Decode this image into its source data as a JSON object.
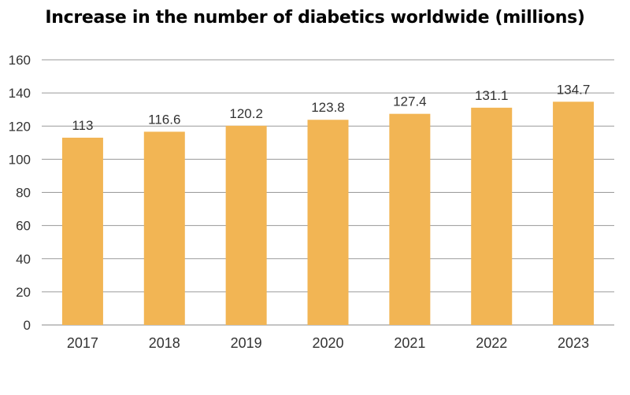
{
  "chart_data": {
    "type": "bar",
    "title": "Increase in the number of diabetics worldwide (millions)",
    "categories": [
      "2017",
      "2018",
      "2019",
      "2020",
      "2021",
      "2022",
      "2023"
    ],
    "values": [
      113,
      116.6,
      120.2,
      123.8,
      127.4,
      131.1,
      134.7
    ],
    "data_labels": [
      "113",
      "116.6",
      "120.2",
      "123.8",
      "127.4",
      "131.1",
      "134.7"
    ],
    "yticks": [
      "0",
      "20",
      "40",
      "60",
      "80",
      "100",
      "120",
      "140",
      "160"
    ],
    "ylim": [
      0,
      160
    ],
    "xlabel": "",
    "ylabel": "",
    "grid": true,
    "bar_color": "#F2B554",
    "grid_color": "#9a9a9a"
  }
}
